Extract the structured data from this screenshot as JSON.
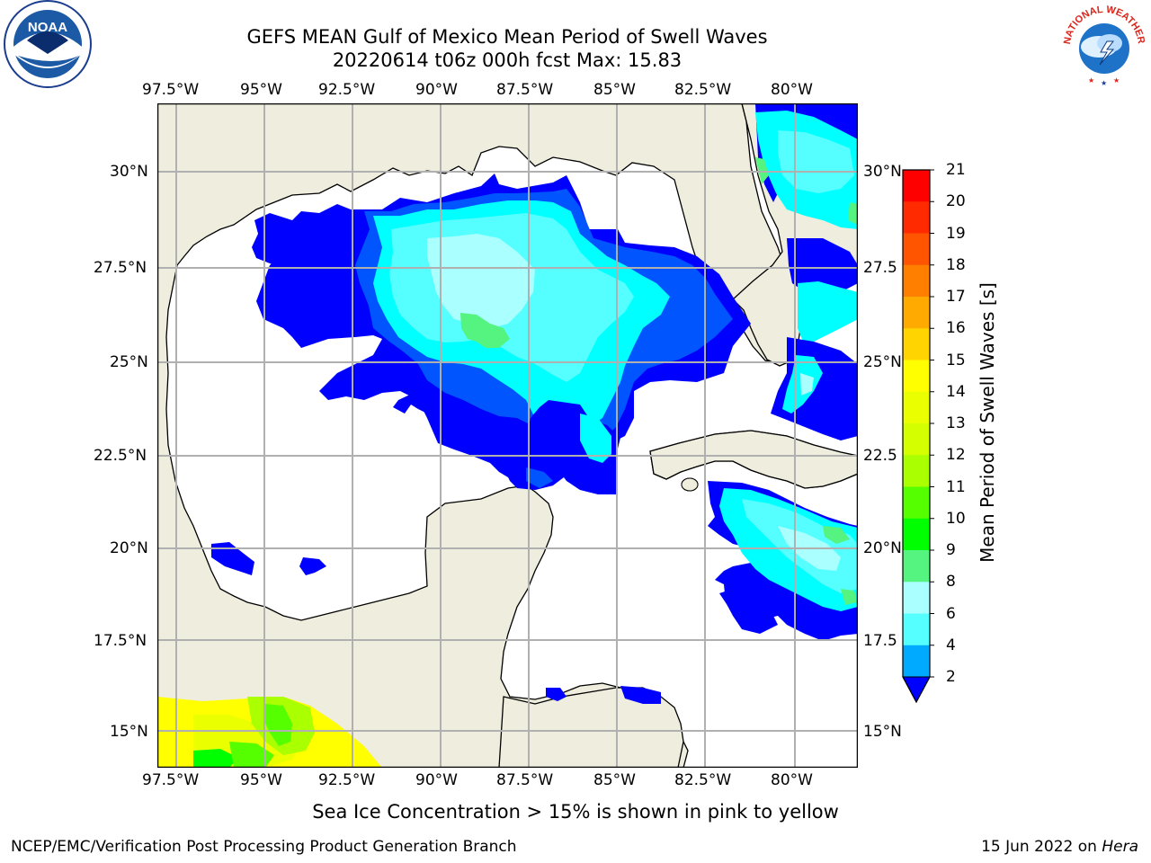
{
  "title": {
    "line1": "GEFS MEAN Gulf of Mexico Mean Period of Swell Waves",
    "line2": "20220614 t06z 000h fcst   Max: 15.83"
  },
  "axes": {
    "lon_labels": [
      "97.5°W",
      "95°W",
      "92.5°W",
      "90°W",
      "87.5°W",
      "85°W",
      "82.5°W",
      "80°W"
    ],
    "lat_labels": [
      "30°N",
      "27.5°N",
      "25°N",
      "22.5°N",
      "20°N",
      "17.5°N",
      "15°N"
    ],
    "lat_labels_right": [
      "30°N",
      "27.5",
      "25°N",
      "22.5",
      "20°N",
      "17.5",
      "15°N"
    ]
  },
  "colorbar": {
    "label": "Mean Period of Swell Waves [s]",
    "ticks": [
      "21",
      "20",
      "19",
      "18",
      "17",
      "16",
      "15",
      "14",
      "13",
      "12",
      "11",
      "10",
      "9",
      "8",
      "6",
      "4",
      "2"
    ],
    "colors": [
      "#ff0000",
      "#ff2a00",
      "#ff5500",
      "#ff7f00",
      "#ffaa00",
      "#ffd400",
      "#ffff00",
      "#eaff00",
      "#d4ff00",
      "#aaff00",
      "#55ff00",
      "#00ff00",
      "#55f37f",
      "#aaffff",
      "#55ffff",
      "#00ffff",
      "#00aaff",
      "#0055ff",
      "#0000ff"
    ]
  },
  "caption": "Sea Ice Concentration > 15% is shown in pink to yellow",
  "footer": {
    "left": "NCEP/EMC/Verification Post Processing Product Generation Branch",
    "date": "15 Jun 2022 on ",
    "host": "Hera"
  },
  "logos": {
    "noaa": "NOAA",
    "nws": "NATIONAL WEATHER SERVICE"
  }
}
